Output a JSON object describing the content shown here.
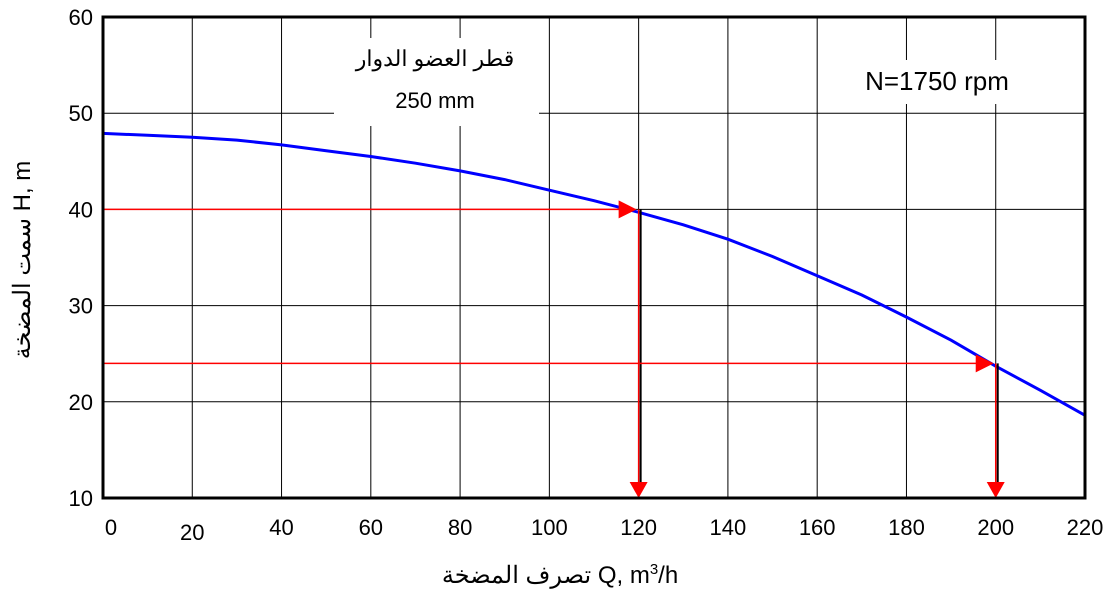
{
  "chart_data": {
    "type": "line",
    "title": "",
    "xlabel_text": "تصرف المضخة",
    "xlabel_units": "Q, m",
    "xlabel_sup": "3",
    "xlabel_tail": "/h",
    "ylabel_text": "سمت المضخة",
    "ylabel_units": "H, m",
    "xlim": [
      0,
      220
    ],
    "ylim": [
      10,
      60
    ],
    "xticks": [
      0,
      20,
      40,
      60,
      80,
      100,
      120,
      140,
      160,
      180,
      200,
      220
    ],
    "yticks": [
      10,
      20,
      30,
      40,
      50,
      60
    ],
    "grid": true,
    "series": [
      {
        "color": "#0000ff",
        "x": [
          0,
          10,
          20,
          30,
          40,
          50,
          60,
          70,
          80,
          90,
          100,
          110,
          120,
          130,
          140,
          150,
          160,
          170,
          180,
          190,
          200,
          210,
          220
        ],
        "y": [
          47.9,
          47.7,
          47.5,
          47.2,
          46.7,
          46.1,
          45.5,
          44.8,
          44.0,
          43.1,
          42.0,
          40.9,
          39.7,
          38.4,
          36.9,
          35.1,
          33.1,
          31.1,
          28.8,
          26.4,
          23.7,
          21.2,
          18.6
        ]
      }
    ],
    "annotations": [
      {
        "text_line1": "قطر العضو الدوار",
        "text_line2": "250 mm"
      },
      {
        "text": "N=1750 rpm"
      }
    ],
    "markers": [
      {
        "color": "#ff0000",
        "from_x": 0,
        "to_x": 120,
        "y": 40,
        "drop_to_y": 10
      },
      {
        "color": "#ff0000",
        "from_x": 0,
        "to_x": 200,
        "y": 24,
        "drop_to_y": 10
      }
    ]
  }
}
